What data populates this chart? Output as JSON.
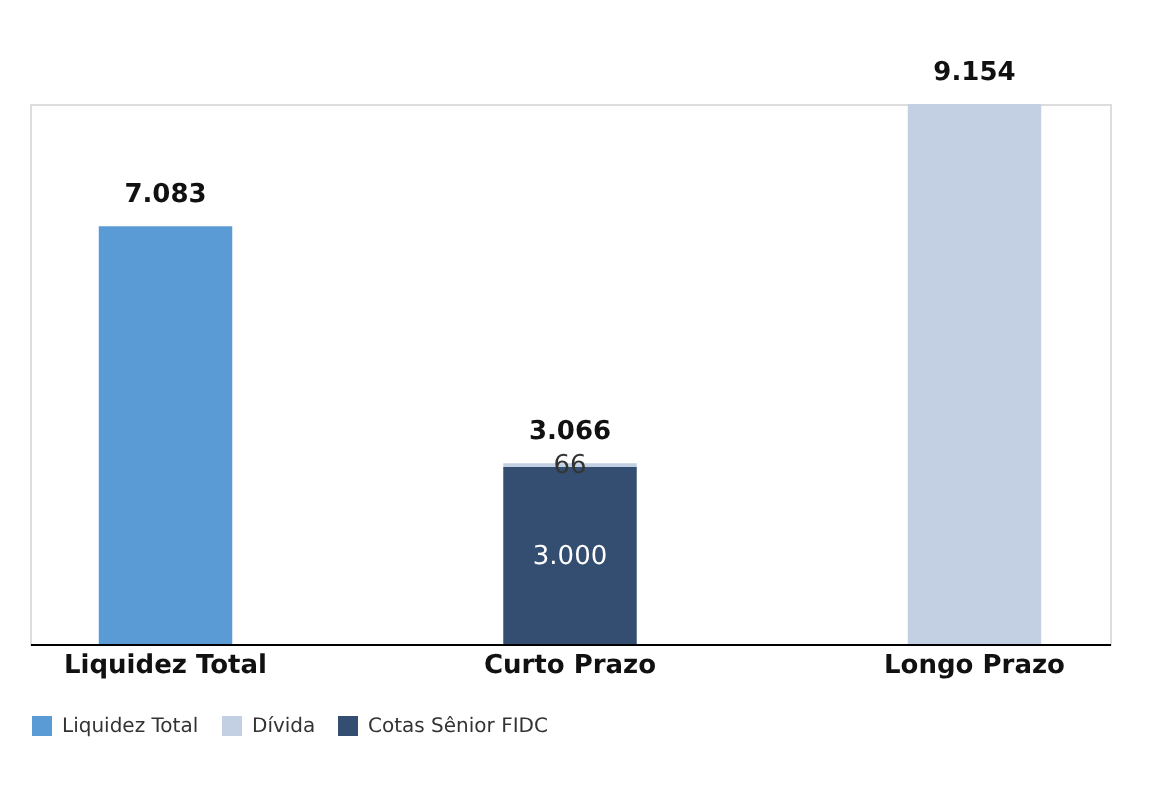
{
  "chart_data": {
    "type": "bar",
    "stacked": true,
    "categories": [
      "Liquidez Total",
      "Curto Prazo",
      "Longo Prazo"
    ],
    "series": [
      {
        "name": "Cotas Sênior FIDC",
        "color": "#344e72",
        "values": [
          null,
          3000,
          null
        ],
        "value_labels": [
          null,
          "3.000",
          null
        ]
      },
      {
        "name": "Dívida",
        "color": "#c3cfe2",
        "values": [
          null,
          66,
          9154
        ],
        "value_labels": [
          null,
          "66",
          null
        ]
      },
      {
        "name": "Liquidez Total",
        "color": "#5b9bd5",
        "values": [
          7083,
          null,
          null
        ]
      }
    ],
    "totals": [
      "7.083",
      "3.066",
      "9.154"
    ],
    "legend": "bottom"
  }
}
